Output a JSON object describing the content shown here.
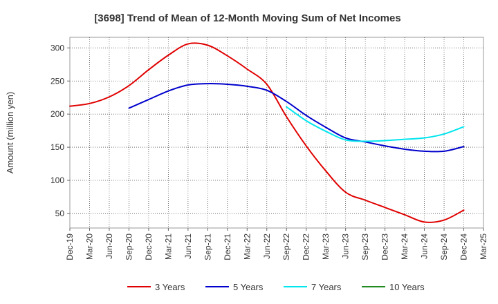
{
  "chart_data": {
    "type": "line",
    "title": "[3698]  Trend of Mean of 12-Month Moving Sum of Net Incomes",
    "xlabel": "",
    "ylabel": "Amount (million yen)",
    "ylim": [
      28,
      316
    ],
    "yticks": [
      50,
      100,
      150,
      200,
      250,
      300
    ],
    "categories": [
      "Dec-19",
      "Mar-20",
      "Jun-20",
      "Sep-20",
      "Dec-20",
      "Mar-21",
      "Jun-21",
      "Sep-21",
      "Dec-21",
      "Mar-22",
      "Jun-22",
      "Sep-22",
      "Dec-22",
      "Mar-23",
      "Jun-23",
      "Sep-23",
      "Dec-23",
      "Mar-24",
      "Jun-24",
      "Sep-24",
      "Dec-24",
      "Mar-25"
    ],
    "grid": true,
    "legend_position": "bottom",
    "series": [
      {
        "name": "3 Years",
        "color": "#e00000",
        "values": [
          212,
          216,
          226,
          243,
          267,
          289,
          306,
          304,
          288,
          268,
          245,
          196,
          152,
          114,
          82,
          70,
          59,
          48,
          37,
          40,
          55,
          null
        ]
      },
      {
        "name": "5 Years",
        "color": "#0000cc",
        "values": [
          null,
          null,
          null,
          209,
          222,
          235,
          244,
          246,
          245,
          242,
          236,
          219,
          198,
          180,
          164,
          158,
          152,
          147,
          144,
          144,
          151,
          null
        ]
      },
      {
        "name": "7 Years",
        "color": "#00e5ee",
        "values": [
          null,
          null,
          null,
          null,
          null,
          null,
          null,
          null,
          null,
          null,
          null,
          211,
          190,
          174,
          161,
          159,
          160,
          162,
          164,
          170,
          181,
          null
        ]
      },
      {
        "name": "10 Years",
        "color": "#228b22",
        "values": [
          null,
          null,
          null,
          null,
          null,
          null,
          null,
          null,
          null,
          null,
          null,
          null,
          null,
          null,
          null,
          null,
          null,
          null,
          null,
          null,
          null,
          null
        ]
      }
    ]
  }
}
